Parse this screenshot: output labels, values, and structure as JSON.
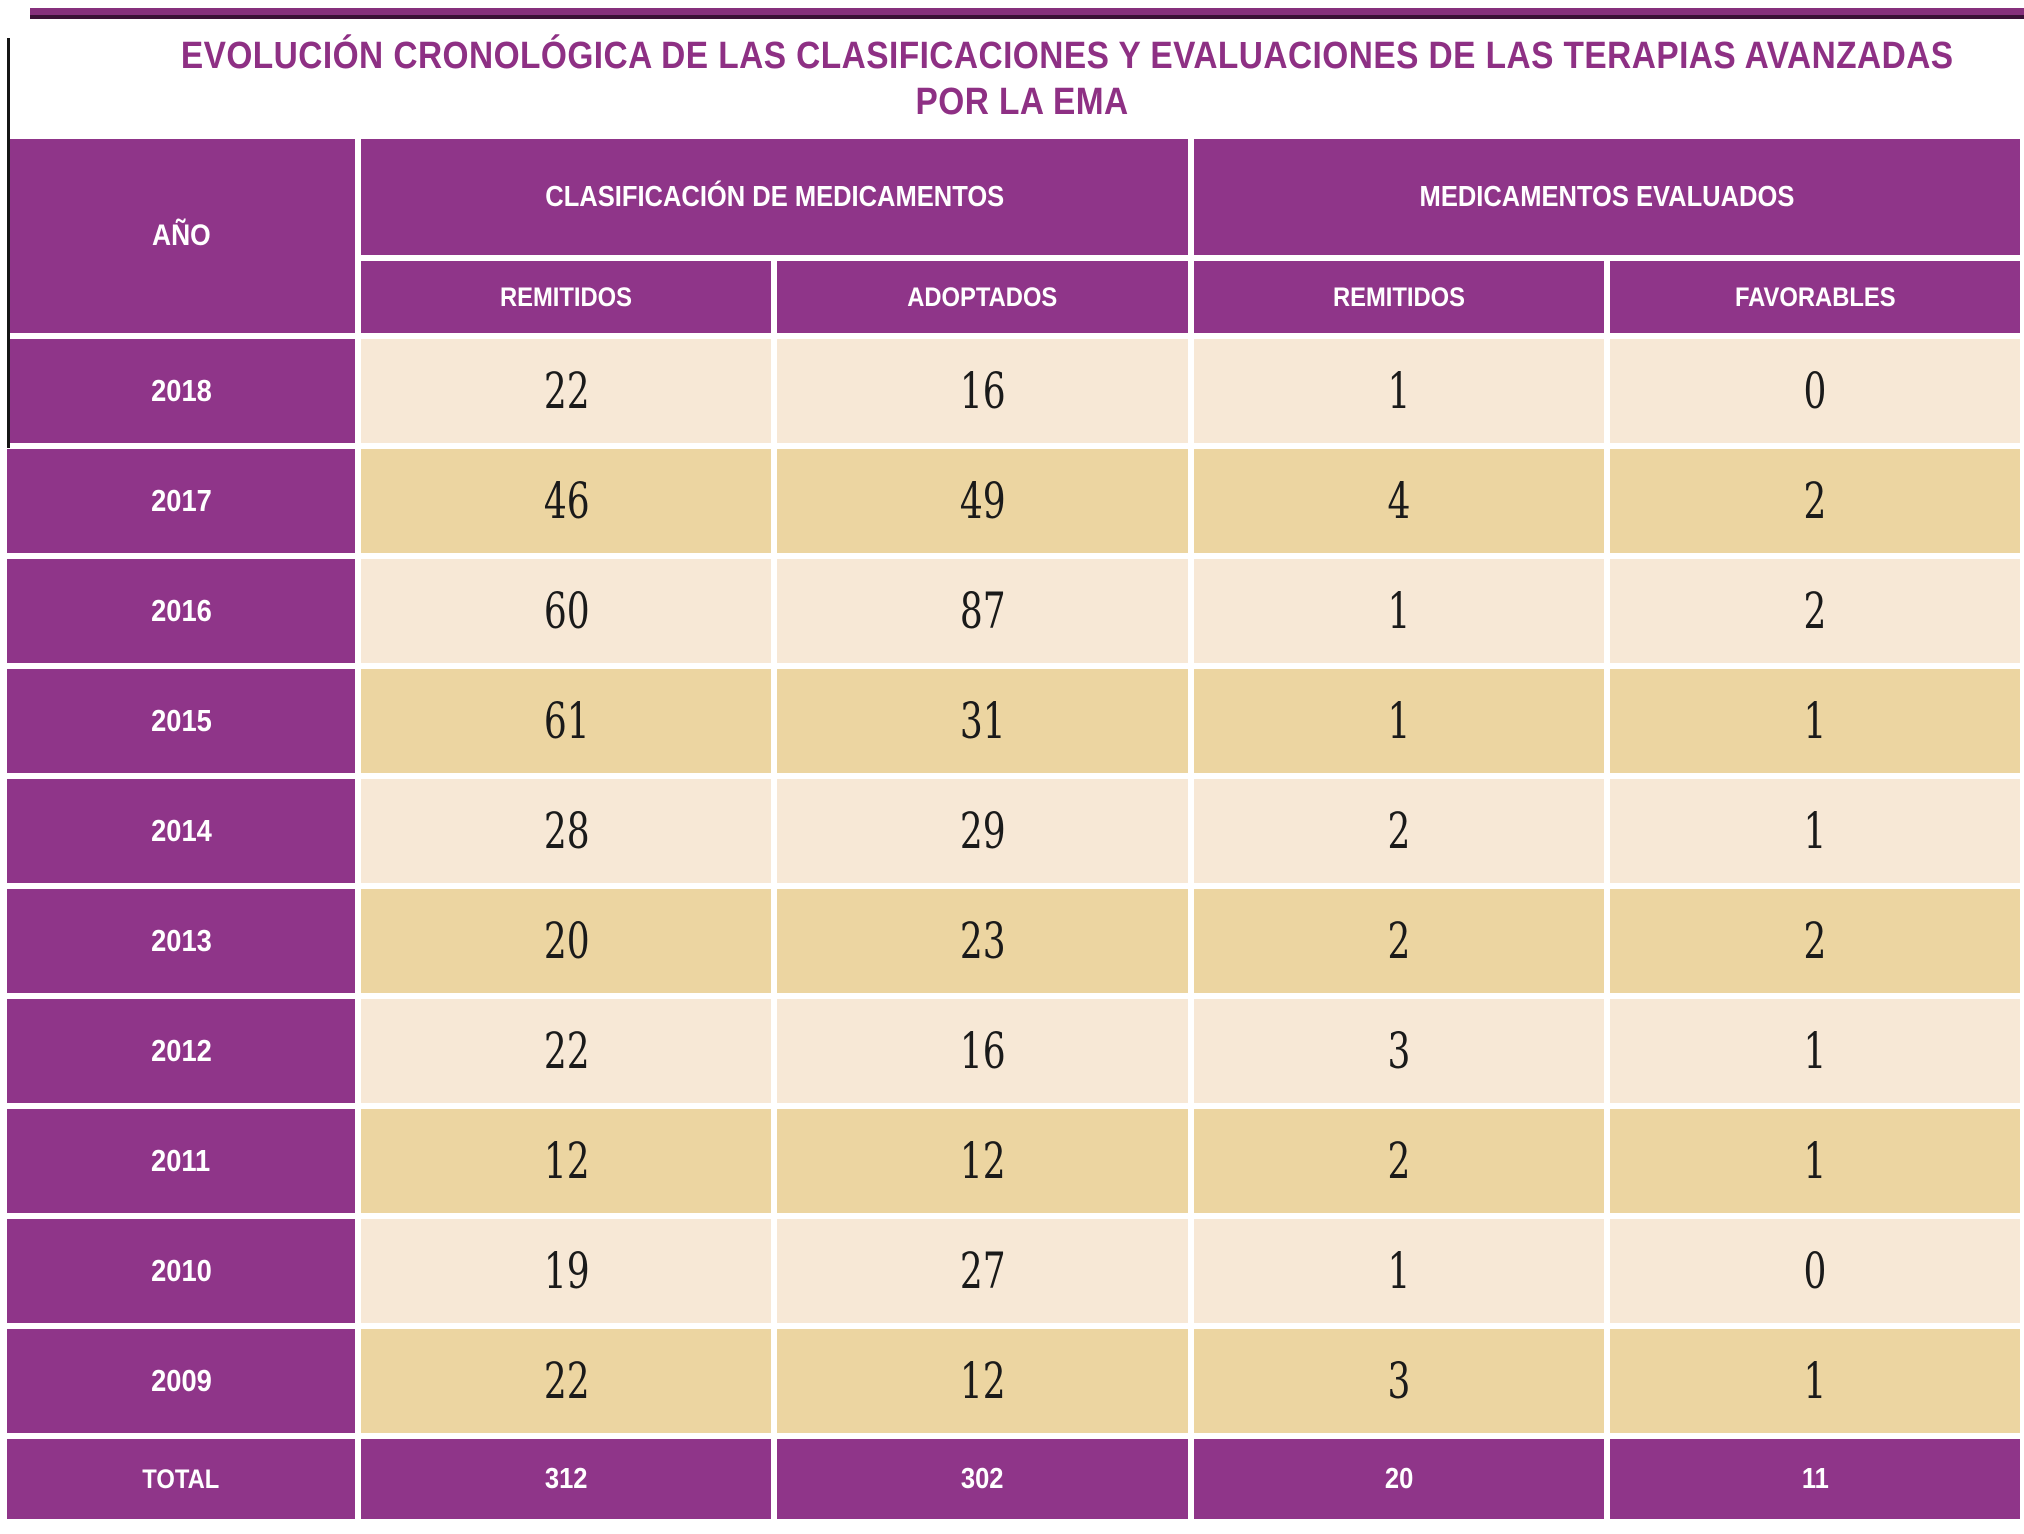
{
  "title": {
    "line1": "EVOLUCIÓN CRONOLÓGICA DE LAS CLASIFICACIONES Y EVALUACIONES DE LAS TERAPIAS AVANZADAS",
    "line2": "POR LA EMA"
  },
  "table": {
    "year_header": "AÑO",
    "group_headers": [
      "CLASIFICACIÓN DE MEDICAMENTOS",
      "MEDICAMENTOS EVALUADOS"
    ],
    "sub_headers": [
      "REMITIDOS",
      "ADOPTADOS",
      "REMITIDOS",
      "FAVORABLES"
    ],
    "rows": [
      {
        "year": "2018",
        "values": [
          "22",
          "16",
          "1",
          "0"
        ]
      },
      {
        "year": "2017",
        "values": [
          "46",
          "49",
          "4",
          "2"
        ]
      },
      {
        "year": "2016",
        "values": [
          "60",
          "87",
          "1",
          "2"
        ]
      },
      {
        "year": "2015",
        "values": [
          "61",
          "31",
          "1",
          "1"
        ]
      },
      {
        "year": "2014",
        "values": [
          "28",
          "29",
          "2",
          "1"
        ]
      },
      {
        "year": "2013",
        "values": [
          "20",
          "23",
          "2",
          "2"
        ]
      },
      {
        "year": "2012",
        "values": [
          "22",
          "16",
          "3",
          "1"
        ]
      },
      {
        "year": "2011",
        "values": [
          "12",
          "12",
          "2",
          "1"
        ]
      },
      {
        "year": "2010",
        "values": [
          "19",
          "27",
          "1",
          "0"
        ]
      },
      {
        "year": "2009",
        "values": [
          "22",
          "12",
          "3",
          "1"
        ]
      }
    ],
    "total_row": {
      "label": "TOTAL",
      "values": [
        "312",
        "302",
        "20",
        "11"
      ]
    }
  },
  "colors": {
    "purple_cell": "#8f3589",
    "top_strip_purple": "#86307c",
    "top_strip_edge": "#3a1136",
    "cream_row": "#f7e8d6",
    "tan_row": "#ecd5a1",
    "title_text": "#8e3084",
    "cell_text": "#1a1a1a",
    "header_text": "#ffffff"
  },
  "chart_data": {
    "type": "table",
    "title": "EVOLUCIÓN CRONOLÓGICA DE LAS CLASIFICACIONES Y EVALUACIONES DE LAS TERAPIAS AVANZADAS POR LA EMA",
    "columns": [
      "AÑO",
      "CLASIFICACIÓN DE MEDICAMENTOS - REMITIDOS",
      "CLASIFICACIÓN DE MEDICAMENTOS - ADOPTADOS",
      "MEDICAMENTOS EVALUADOS - REMITIDOS",
      "MEDICAMENTOS EVALUADOS - FAVORABLES"
    ],
    "rows": [
      [
        "2018",
        22,
        16,
        1,
        0
      ],
      [
        "2017",
        46,
        49,
        4,
        2
      ],
      [
        "2016",
        60,
        87,
        1,
        2
      ],
      [
        "2015",
        61,
        31,
        1,
        1
      ],
      [
        "2014",
        28,
        29,
        2,
        1
      ],
      [
        "2013",
        20,
        23,
        2,
        2
      ],
      [
        "2012",
        22,
        16,
        3,
        1
      ],
      [
        "2011",
        12,
        12,
        2,
        1
      ],
      [
        "2010",
        19,
        27,
        1,
        0
      ],
      [
        "2009",
        22,
        12,
        3,
        1
      ],
      [
        "TOTAL",
        312,
        302,
        20,
        11
      ]
    ]
  }
}
